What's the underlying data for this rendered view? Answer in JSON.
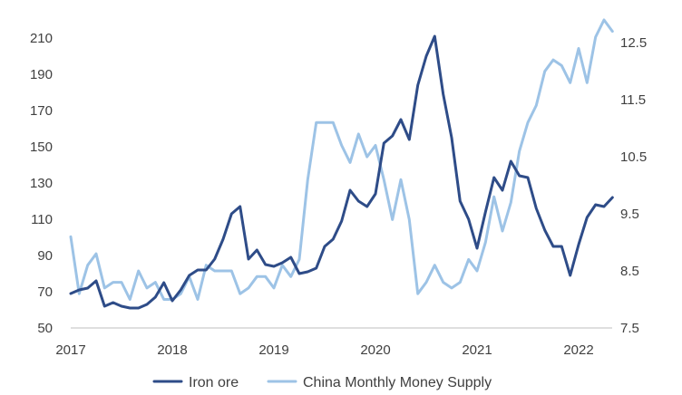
{
  "chart_data": {
    "type": "line",
    "title": "",
    "xlabel": "",
    "ylabel_left": "",
    "ylabel_right": "",
    "grid": false,
    "legend_position": "bottom",
    "x_ticks": [
      "2017",
      "2018",
      "2019",
      "2020",
      "2021",
      "2022"
    ],
    "y_left": {
      "ylim": [
        50,
        220
      ],
      "ticks": [
        50,
        70,
        90,
        110,
        130,
        150,
        170,
        190,
        210
      ]
    },
    "y_right": {
      "ylim": [
        7.5,
        12.9
      ],
      "ticks": [
        "7.5",
        "8.5",
        "9.5",
        "10.5",
        "11.5",
        "12.5"
      ]
    },
    "series": [
      {
        "name": "Iron ore",
        "axis": "left",
        "color": "#2e4c88",
        "points": [
          [
            "2017-01",
            69
          ],
          [
            "2017-02",
            71
          ],
          [
            "2017-03",
            72
          ],
          [
            "2017-04",
            76
          ],
          [
            "2017-05",
            62
          ],
          [
            "2017-06",
            64
          ],
          [
            "2017-07",
            62
          ],
          [
            "2017-08",
            61
          ],
          [
            "2017-09",
            61
          ],
          [
            "2017-10",
            63
          ],
          [
            "2017-11",
            67
          ],
          [
            "2017-12",
            75
          ],
          [
            "2018-01",
            65
          ],
          [
            "2018-02",
            71
          ],
          [
            "2018-03",
            79
          ],
          [
            "2018-04",
            82
          ],
          [
            "2018-05",
            82
          ],
          [
            "2018-06",
            88
          ],
          [
            "2018-07",
            99
          ],
          [
            "2018-08",
            113
          ],
          [
            "2018-09",
            117
          ],
          [
            "2018-10",
            88
          ],
          [
            "2018-11",
            93
          ],
          [
            "2018-12",
            85
          ],
          [
            "2019-01",
            84
          ],
          [
            "2019-02",
            86
          ],
          [
            "2019-03",
            89
          ],
          [
            "2019-04",
            80
          ],
          [
            "2019-05",
            81
          ],
          [
            "2019-06",
            83
          ],
          [
            "2019-07",
            95
          ],
          [
            "2019-08",
            99
          ],
          [
            "2019-09",
            109
          ],
          [
            "2019-10",
            126
          ],
          [
            "2019-11",
            120
          ],
          [
            "2019-12",
            117
          ],
          [
            "2020-01",
            124
          ],
          [
            "2020-02",
            152
          ],
          [
            "2020-03",
            156
          ],
          [
            "2020-04",
            165
          ],
          [
            "2020-05",
            154
          ],
          [
            "2020-06",
            184
          ],
          [
            "2020-07",
            200
          ],
          [
            "2020-08",
            211
          ],
          [
            "2020-09",
            179
          ],
          [
            "2020-10",
            155
          ],
          [
            "2020-11",
            120
          ],
          [
            "2020-12",
            110
          ],
          [
            "2021-01",
            94
          ],
          [
            "2021-02",
            114
          ],
          [
            "2021-03",
            133
          ],
          [
            "2021-04",
            126
          ],
          [
            "2021-05",
            142
          ],
          [
            "2021-06",
            134
          ],
          [
            "2021-07",
            133
          ],
          [
            "2021-08",
            116
          ],
          [
            "2021-09",
            104
          ],
          [
            "2021-10",
            95
          ],
          [
            "2021-11",
            95
          ],
          [
            "2021-12",
            79
          ],
          [
            "2022-01",
            96
          ],
          [
            "2022-02",
            111
          ],
          [
            "2022-03",
            118
          ],
          [
            "2022-04",
            117
          ],
          [
            "2022-05",
            122
          ]
        ]
      },
      {
        "name": "China Monthly Money Supply",
        "axis": "right",
        "color": "#9dc3e6",
        "points": [
          [
            "2017-01",
            9.1
          ],
          [
            "2017-02",
            8.1
          ],
          [
            "2017-03",
            8.6
          ],
          [
            "2017-04",
            8.8
          ],
          [
            "2017-05",
            8.2
          ],
          [
            "2017-06",
            8.3
          ],
          [
            "2017-07",
            8.3
          ],
          [
            "2017-08",
            8.0
          ],
          [
            "2017-09",
            8.5
          ],
          [
            "2017-10",
            8.2
          ],
          [
            "2017-11",
            8.3
          ],
          [
            "2017-12",
            8.0
          ],
          [
            "2018-01",
            8.0
          ],
          [
            "2018-02",
            8.1
          ],
          [
            "2018-03",
            8.4
          ],
          [
            "2018-04",
            8.0
          ],
          [
            "2018-05",
            8.6
          ],
          [
            "2018-06",
            8.5
          ],
          [
            "2018-07",
            8.5
          ],
          [
            "2018-08",
            8.5
          ],
          [
            "2018-09",
            8.1
          ],
          [
            "2018-10",
            8.2
          ],
          [
            "2018-11",
            8.4
          ],
          [
            "2018-12",
            8.4
          ],
          [
            "2019-01",
            8.2
          ],
          [
            "2019-02",
            8.6
          ],
          [
            "2019-03",
            8.4
          ],
          [
            "2019-04",
            8.7
          ],
          [
            "2019-05",
            10.1
          ],
          [
            "2019-06",
            11.1
          ],
          [
            "2019-07",
            11.1
          ],
          [
            "2019-08",
            11.1
          ],
          [
            "2019-09",
            10.7
          ],
          [
            "2019-10",
            10.4
          ],
          [
            "2019-11",
            10.9
          ],
          [
            "2019-12",
            10.5
          ],
          [
            "2020-01",
            10.7
          ],
          [
            "2020-02",
            10.1
          ],
          [
            "2020-03",
            9.4
          ],
          [
            "2020-04",
            10.1
          ],
          [
            "2020-05",
            9.4
          ],
          [
            "2020-06",
            8.1
          ],
          [
            "2020-07",
            8.3
          ],
          [
            "2020-08",
            8.6
          ],
          [
            "2020-09",
            8.3
          ],
          [
            "2020-10",
            8.2
          ],
          [
            "2020-11",
            8.3
          ],
          [
            "2020-12",
            8.7
          ],
          [
            "2021-01",
            8.5
          ],
          [
            "2021-02",
            9.0
          ],
          [
            "2021-03",
            9.8
          ],
          [
            "2021-04",
            9.2
          ],
          [
            "2021-05",
            9.7
          ],
          [
            "2021-06",
            10.6
          ],
          [
            "2021-07",
            11.1
          ],
          [
            "2021-08",
            11.4
          ],
          [
            "2021-09",
            12.0
          ],
          [
            "2021-10",
            12.2
          ],
          [
            "2021-11",
            12.1
          ],
          [
            "2021-12",
            11.8
          ],
          [
            "2022-01",
            12.4
          ],
          [
            "2022-02",
            11.8
          ],
          [
            "2022-03",
            12.6
          ],
          [
            "2022-04",
            12.9
          ],
          [
            "2022-05",
            12.7
          ]
        ]
      }
    ]
  }
}
